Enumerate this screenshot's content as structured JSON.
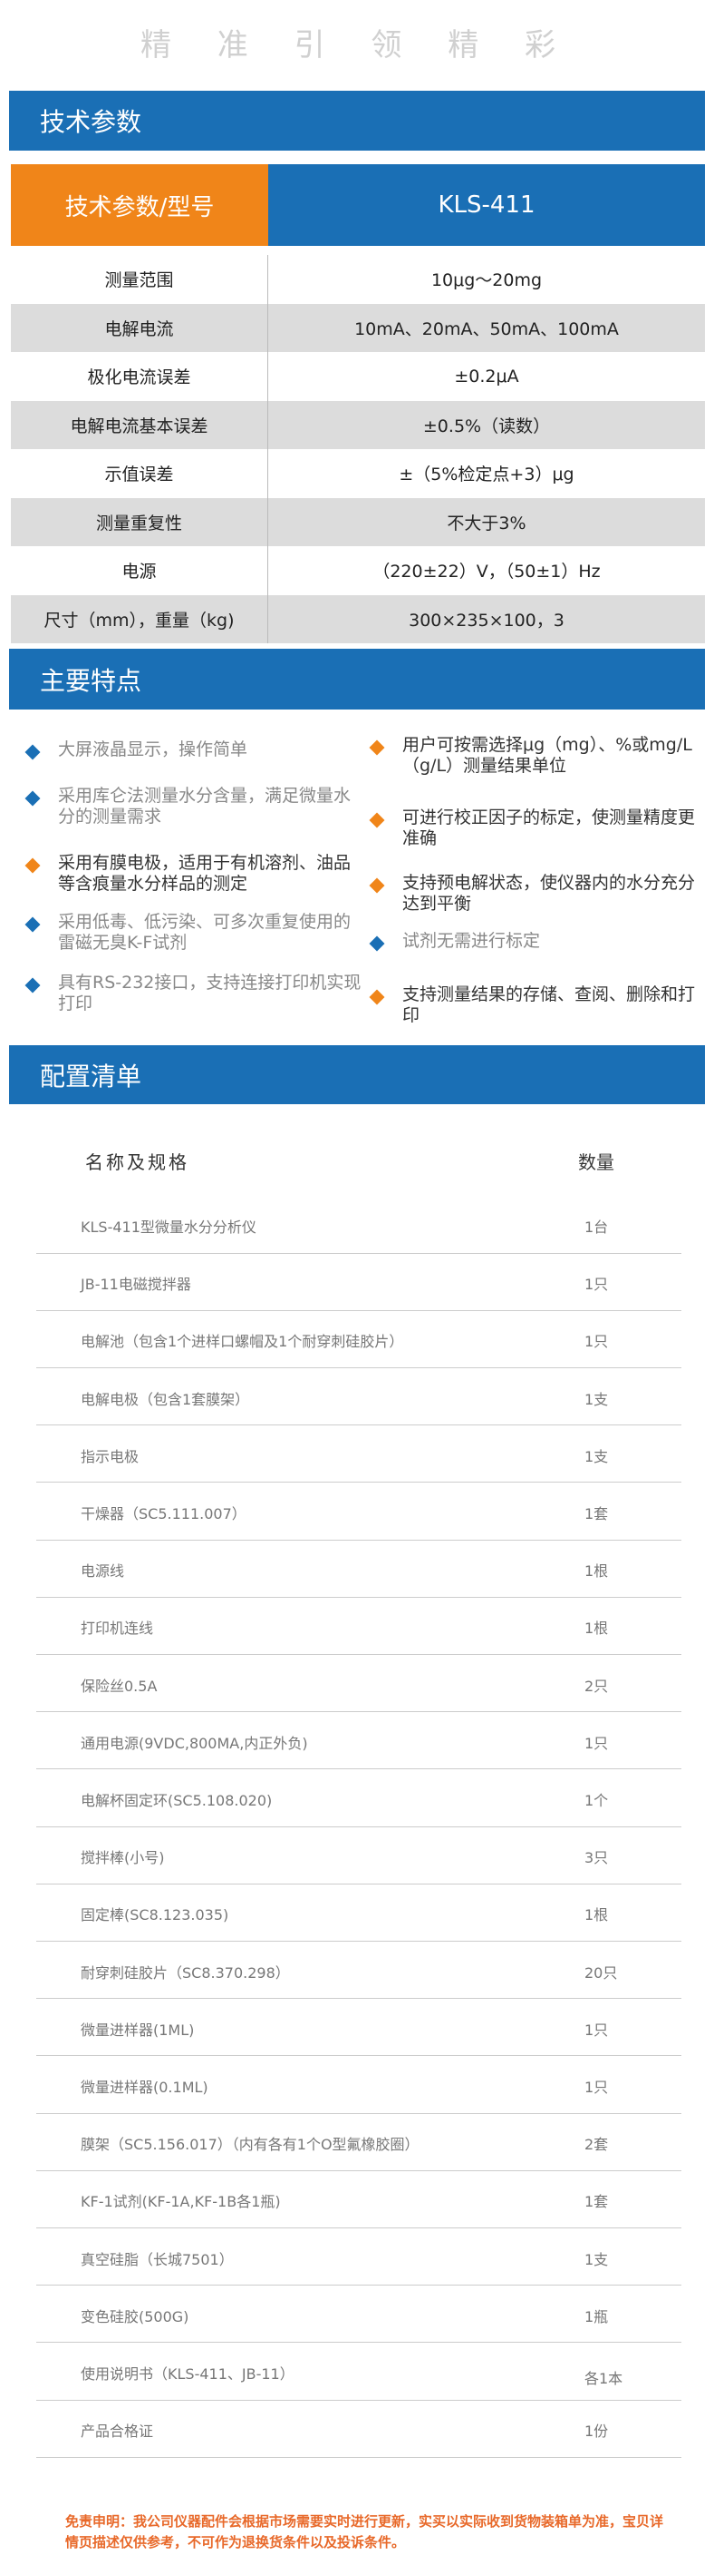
{
  "header": {
    "slogan": "精 准 引 领 精 彩"
  },
  "specs": {
    "title": "技术参数",
    "head": [
      "技术参数/型号",
      "KLS-411"
    ],
    "rows": [
      [
        "测量范围",
        "10μg～20mg"
      ],
      [
        "电解电流",
        "10mA、20mA、50mA、100mA"
      ],
      [
        "极化电流误差",
        "±0.2μA"
      ],
      [
        "电解电流基本误差",
        "±0.5%（读数）"
      ],
      [
        "示值误差",
        "±（5%检定点+3）μg"
      ],
      [
        "测量重复性",
        "不大于3%"
      ],
      [
        "电源",
        "（220±22）V，（50±1）Hz"
      ],
      [
        "尺寸（mm），重量（kg)",
        "300×235×100，3"
      ]
    ]
  },
  "features": {
    "title": "主要特点",
    "left": [
      {
        "text": "大屏液晶显示，操作简单",
        "color": "#1a6fb5"
      },
      {
        "text": "采用库仑法测量水分含量，满足微量水分的测量需求",
        "color": "#1a6fb5"
      },
      {
        "text": "采用有膜电极，适用于有机溶剂、油品等含痕量水分样品的测定",
        "color": "#f08519"
      },
      {
        "text": "采用低毒、低污染、可多次重复使用的雷磁无臭K-F试剂",
        "color": "#1a6fb5"
      },
      {
        "text": "具有RS-232接口，支持连接打印机实现打印",
        "color": "#1a6fb5"
      }
    ],
    "right": [
      {
        "text": "用户可按需选择μg（mg）、%或mg/L（g/L）测量结果单位",
        "color": "#f08519"
      },
      {
        "text": "可进行校正因子的标定，使测量精度更准确",
        "color": "#f08519"
      },
      {
        "text": "支持预电解状态，使仪器内的水分充分达到平衡",
        "color": "#f08519"
      },
      {
        "text": "试剂无需进行标定",
        "color": "#1a6fb5"
      },
      {
        "text": "支持测量结果的存储、查阅、删除和打印",
        "color": "#f08519"
      }
    ]
  },
  "config": {
    "title": "配置清单",
    "head": [
      "名称及规格",
      "数量"
    ],
    "rows": [
      [
        "KLS-411型微量水分分析仪",
        "1台"
      ],
      [
        "JB-11电磁搅拌器",
        "1只"
      ],
      [
        "电解池（包含1个进样口螺帽及1个耐穿刺硅胶片）",
        "1只"
      ],
      [
        "电解电极（包含1套膜架）",
        "1支"
      ],
      [
        "指示电极",
        "1支"
      ],
      [
        "干燥器（SC5.111.007）",
        "1套"
      ],
      [
        "电源线",
        "1根"
      ],
      [
        "打印机连线",
        "1根"
      ],
      [
        "保险丝0.5A",
        "2只"
      ],
      [
        "通用电源(9VDC,800MA,内正外负)",
        "1只"
      ],
      [
        "电解杯固定环(SC5.108.020)",
        "1个"
      ],
      [
        "搅拌棒(小号)",
        "3只"
      ],
      [
        "固定棒(SC8.123.035)",
        "1根"
      ],
      [
        "耐穿刺硅胶片（SC8.370.298）",
        "20只"
      ],
      [
        "微量进样器(1ML)",
        "1只"
      ],
      [
        "微量进样器(0.1ML)",
        "1只"
      ],
      [
        "膜架（SC5.156.017）（内有各有1个O型氟橡胶圈）",
        "2套"
      ],
      [
        "KF-1试剂(KF-1A,KF-1B各1瓶)",
        "1套"
      ],
      [
        "真空硅脂（长城7501）",
        "1支"
      ],
      [
        "变色硅胶(500G)",
        "1瓶"
      ],
      [
        "使用说明书（KLS-411、JB-11）",
        "各1本"
      ],
      [
        "产品合格证",
        "1份"
      ]
    ]
  },
  "disclaimer": "免责申明：我公司仪器配件会根据市场需要实时进行更新，实买以实际收到货物装箱单为准，宝贝详情页描述仅供参考，不可作为退换货条件以及投诉条件。"
}
